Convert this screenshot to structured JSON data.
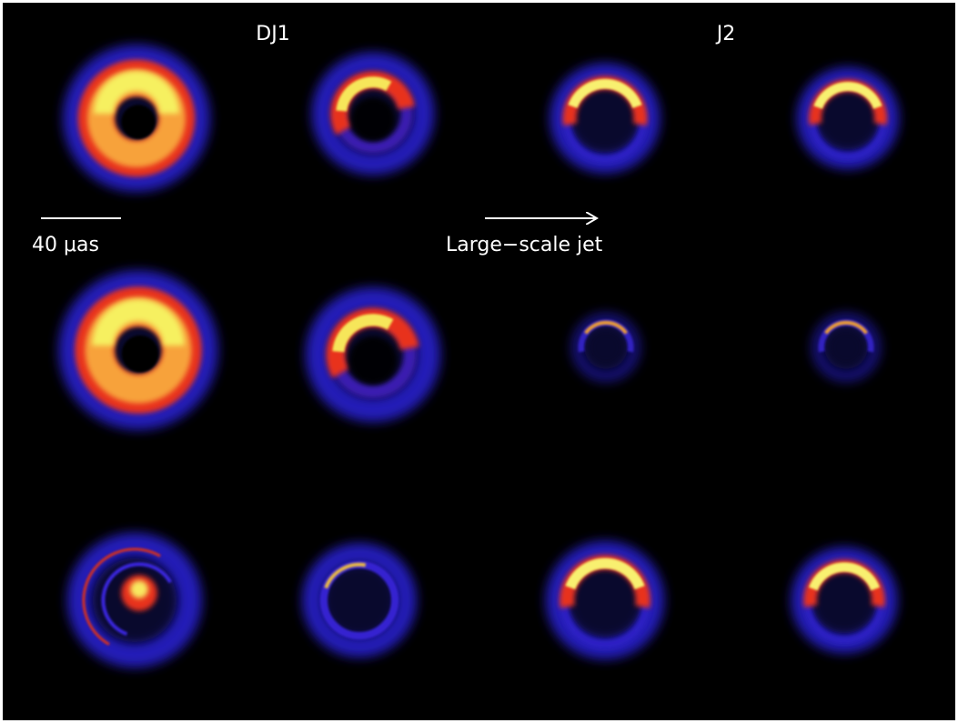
{
  "labels": {
    "column_left": "DJ1",
    "column_right": "J2"
  },
  "scale_bar": {
    "label": "40 μas"
  },
  "jet_arrow": {
    "label": "Large−scale jet"
  }
}
